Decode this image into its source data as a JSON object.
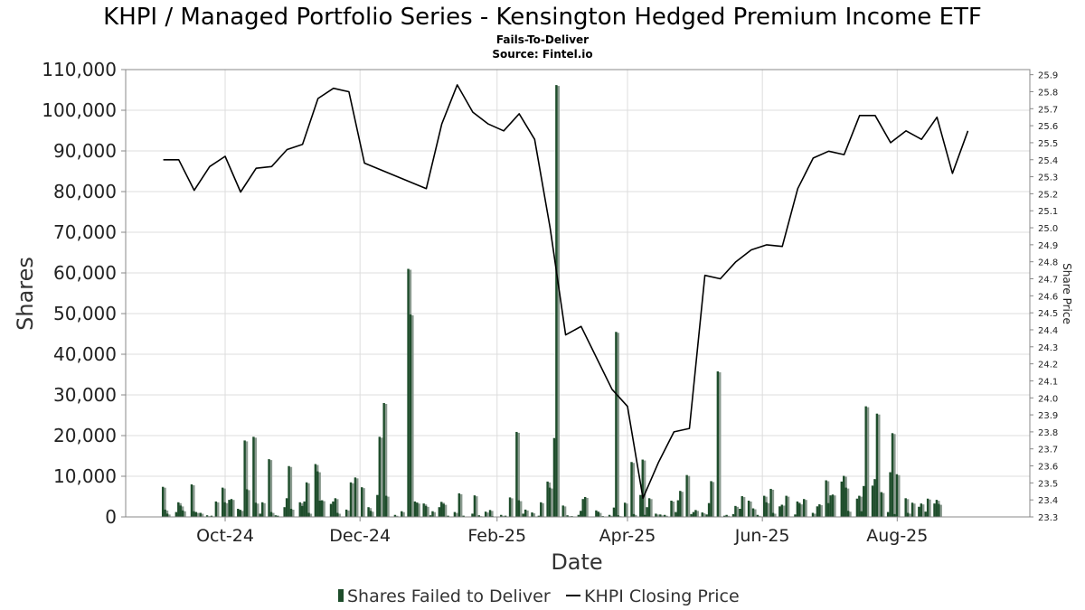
{
  "chart_data": {
    "type": "bar",
    "title": "KHPI / Managed Portfolio Series - Kensington Hedged Premium Income ETF",
    "subtitle": "Fails-To-Deliver",
    "source": "Source: Fintel.io",
    "xlabel": "Date",
    "ylabel": "Shares",
    "y2label": "Share Price",
    "ylim": [
      0,
      110000
    ],
    "y2lim": [
      23.3,
      25.93
    ],
    "xlim": [
      "2024-08-17",
      "2025-09-30"
    ],
    "grid": true,
    "legend_position": "bottom-center",
    "colors": {
      "bar": "#1e4d2b",
      "bar_shadow": "#8a9a8f",
      "line": "#000000",
      "grid": "#dddddd"
    },
    "yticks": [
      0,
      10000,
      20000,
      30000,
      40000,
      50000,
      60000,
      70000,
      80000,
      90000,
      100000,
      110000
    ],
    "ytick_labels": [
      "0",
      "10,000",
      "20,000",
      "30,000",
      "40,000",
      "50,000",
      "60,000",
      "70,000",
      "80,000",
      "90,000",
      "100,000",
      "110,000"
    ],
    "y2ticks": [
      23.3,
      23.4,
      23.5,
      23.6,
      23.7,
      23.8,
      23.9,
      24.0,
      24.1,
      24.2,
      24.3,
      24.4,
      24.5,
      24.6,
      24.7,
      24.8,
      24.9,
      25.0,
      25.1,
      25.2,
      25.3,
      25.4,
      25.5,
      25.6,
      25.7,
      25.8,
      25.9
    ],
    "xticks": [
      {
        "date": "2024-10-01",
        "label": "Oct-24"
      },
      {
        "date": "2024-12-01",
        "label": "Dec-24"
      },
      {
        "date": "2025-02-01",
        "label": "Feb-25"
      },
      {
        "date": "2025-04-01",
        "label": "Apr-25"
      },
      {
        "date": "2025-06-01",
        "label": "Jun-25"
      },
      {
        "date": "2025-08-01",
        "label": "Aug-25"
      }
    ],
    "series": [
      {
        "name": "Shares Failed to Deliver",
        "type": "bar",
        "points": [
          [
            "2024-09-03",
            7400
          ],
          [
            "2024-09-04",
            1800
          ],
          [
            "2024-09-05",
            800
          ],
          [
            "2024-09-09",
            1200
          ],
          [
            "2024-09-10",
            3600
          ],
          [
            "2024-09-11",
            2800
          ],
          [
            "2024-09-12",
            1600
          ],
          [
            "2024-09-16",
            8000
          ],
          [
            "2024-09-17",
            1400
          ],
          [
            "2024-09-18",
            1200
          ],
          [
            "2024-09-20",
            1000
          ],
          [
            "2024-09-23",
            400
          ],
          [
            "2024-09-25",
            300
          ],
          [
            "2024-09-27",
            3800
          ],
          [
            "2024-09-30",
            7200
          ],
          [
            "2024-10-01",
            3600
          ],
          [
            "2024-10-03",
            4200
          ],
          [
            "2024-10-04",
            4400
          ],
          [
            "2024-10-07",
            2000
          ],
          [
            "2024-10-08",
            1700
          ],
          [
            "2024-10-10",
            18800
          ],
          [
            "2024-10-11",
            6800
          ],
          [
            "2024-10-14",
            19700
          ],
          [
            "2024-10-15",
            3500
          ],
          [
            "2024-10-17",
            800
          ],
          [
            "2024-10-18",
            3600
          ],
          [
            "2024-10-21",
            14200
          ],
          [
            "2024-10-22",
            1200
          ],
          [
            "2024-10-24",
            400
          ],
          [
            "2024-10-25",
            300
          ],
          [
            "2024-10-28",
            2400
          ],
          [
            "2024-10-29",
            4600
          ],
          [
            "2024-10-30",
            12500
          ],
          [
            "2024-10-31",
            2000
          ],
          [
            "2024-11-04",
            3600
          ],
          [
            "2024-11-05",
            2700
          ],
          [
            "2024-11-06",
            3800
          ],
          [
            "2024-11-07",
            8500
          ],
          [
            "2024-11-08",
            1000
          ],
          [
            "2024-11-11",
            13000
          ],
          [
            "2024-11-12",
            11200
          ],
          [
            "2024-11-13",
            4000
          ],
          [
            "2024-11-14",
            4100
          ],
          [
            "2024-11-18",
            3200
          ],
          [
            "2024-11-19",
            3800
          ],
          [
            "2024-11-20",
            4600
          ],
          [
            "2024-11-21",
            1000
          ],
          [
            "2024-11-25",
            1800
          ],
          [
            "2024-11-27",
            8500
          ],
          [
            "2024-11-29",
            9700
          ],
          [
            "2024-12-02",
            7300
          ],
          [
            "2024-12-05",
            2400
          ],
          [
            "2024-12-06",
            1500
          ],
          [
            "2024-12-09",
            5400
          ],
          [
            "2024-12-10",
            19700
          ],
          [
            "2024-12-12",
            28000
          ],
          [
            "2024-12-13",
            5200
          ],
          [
            "2024-12-17",
            500
          ],
          [
            "2024-12-20",
            1400
          ],
          [
            "2024-12-23",
            61000
          ],
          [
            "2024-12-24",
            49800
          ],
          [
            "2024-12-26",
            3800
          ],
          [
            "2024-12-27",
            3500
          ],
          [
            "2024-12-30",
            3300
          ],
          [
            "2024-12-31",
            2700
          ],
          [
            "2025-01-02",
            400
          ],
          [
            "2025-01-03",
            1400
          ],
          [
            "2025-01-06",
            2400
          ],
          [
            "2025-01-07",
            3700
          ],
          [
            "2025-01-08",
            3200
          ],
          [
            "2025-01-10",
            300
          ],
          [
            "2025-01-13",
            1200
          ],
          [
            "2025-01-15",
            5800
          ],
          [
            "2025-01-17",
            300
          ],
          [
            "2025-01-21",
            800
          ],
          [
            "2025-01-22",
            5300
          ],
          [
            "2025-01-24",
            400
          ],
          [
            "2025-01-27",
            1300
          ],
          [
            "2025-01-29",
            1700
          ],
          [
            "2025-01-30",
            200
          ],
          [
            "2025-02-03",
            500
          ],
          [
            "2025-02-05",
            300
          ],
          [
            "2025-02-07",
            4800
          ],
          [
            "2025-02-10",
            20900
          ],
          [
            "2025-02-11",
            4100
          ],
          [
            "2025-02-13",
            800
          ],
          [
            "2025-02-14",
            1800
          ],
          [
            "2025-02-17",
            1100
          ],
          [
            "2025-02-20",
            300
          ],
          [
            "2025-02-21",
            3600
          ],
          [
            "2025-02-24",
            8700
          ],
          [
            "2025-02-25",
            7200
          ],
          [
            "2025-02-27",
            19400
          ],
          [
            "2025-02-28",
            106200
          ],
          [
            "2025-03-03",
            2800
          ],
          [
            "2025-03-05",
            400
          ],
          [
            "2025-03-07",
            200
          ],
          [
            "2025-03-10",
            500
          ],
          [
            "2025-03-11",
            1500
          ],
          [
            "2025-03-12",
            4400
          ],
          [
            "2025-03-13",
            4900
          ],
          [
            "2025-03-18",
            1600
          ],
          [
            "2025-03-19",
            1200
          ],
          [
            "2025-03-21",
            200
          ],
          [
            "2025-03-24",
            500
          ],
          [
            "2025-03-26",
            2300
          ],
          [
            "2025-03-27",
            45500
          ],
          [
            "2025-03-28",
            400
          ],
          [
            "2025-03-31",
            3500
          ],
          [
            "2025-04-03",
            13500
          ],
          [
            "2025-04-04",
            700
          ],
          [
            "2025-04-07",
            5400
          ],
          [
            "2025-04-08",
            14100
          ],
          [
            "2025-04-09",
            500
          ],
          [
            "2025-04-10",
            2400
          ],
          [
            "2025-04-11",
            4600
          ],
          [
            "2025-04-14",
            800
          ],
          [
            "2025-04-16",
            600
          ],
          [
            "2025-04-18",
            500
          ],
          [
            "2025-04-21",
            4000
          ],
          [
            "2025-04-23",
            1200
          ],
          [
            "2025-04-24",
            4100
          ],
          [
            "2025-04-25",
            6400
          ],
          [
            "2025-04-28",
            10300
          ],
          [
            "2025-04-30",
            700
          ],
          [
            "2025-05-01",
            1200
          ],
          [
            "2025-05-02",
            1700
          ],
          [
            "2025-05-05",
            1100
          ],
          [
            "2025-05-07",
            600
          ],
          [
            "2025-05-08",
            3400
          ],
          [
            "2025-05-09",
            8800
          ],
          [
            "2025-05-12",
            35800
          ],
          [
            "2025-05-15",
            300
          ],
          [
            "2025-05-16",
            500
          ],
          [
            "2025-05-19",
            700
          ],
          [
            "2025-05-20",
            2700
          ],
          [
            "2025-05-22",
            2000
          ],
          [
            "2025-05-23",
            5100
          ],
          [
            "2025-05-26",
            4000
          ],
          [
            "2025-05-28",
            2100
          ],
          [
            "2025-05-30",
            500
          ],
          [
            "2025-06-02",
            5200
          ],
          [
            "2025-06-03",
            3600
          ],
          [
            "2025-06-05",
            6900
          ],
          [
            "2025-06-06",
            1000
          ],
          [
            "2025-06-09",
            2600
          ],
          [
            "2025-06-10",
            3000
          ],
          [
            "2025-06-12",
            5200
          ],
          [
            "2025-06-16",
            600
          ],
          [
            "2025-06-17",
            3800
          ],
          [
            "2025-06-18",
            3300
          ],
          [
            "2025-06-20",
            4400
          ],
          [
            "2025-06-24",
            1000
          ],
          [
            "2025-06-26",
            2600
          ],
          [
            "2025-06-27",
            3100
          ],
          [
            "2025-06-30",
            9000
          ],
          [
            "2025-07-01",
            3400
          ],
          [
            "2025-07-02",
            5300
          ],
          [
            "2025-07-03",
            5500
          ],
          [
            "2025-07-07",
            8700
          ],
          [
            "2025-07-08",
            10100
          ],
          [
            "2025-07-09",
            7200
          ],
          [
            "2025-07-10",
            1500
          ],
          [
            "2025-07-14",
            4500
          ],
          [
            "2025-07-15",
            5200
          ],
          [
            "2025-07-16",
            1400
          ],
          [
            "2025-07-17",
            7600
          ],
          [
            "2025-07-18",
            27200
          ],
          [
            "2025-07-21",
            7700
          ],
          [
            "2025-07-22",
            9300
          ],
          [
            "2025-07-23",
            25400
          ],
          [
            "2025-07-25",
            6100
          ],
          [
            "2025-07-28",
            1200
          ],
          [
            "2025-07-29",
            11000
          ],
          [
            "2025-07-30",
            20600
          ],
          [
            "2025-07-31",
            700
          ],
          [
            "2025-08-01",
            10500
          ],
          [
            "2025-08-05",
            4600
          ],
          [
            "2025-08-06",
            1000
          ],
          [
            "2025-08-08",
            3500
          ],
          [
            "2025-08-11",
            2500
          ],
          [
            "2025-08-12",
            3300
          ],
          [
            "2025-08-14",
            1300
          ],
          [
            "2025-08-15",
            4500
          ],
          [
            "2025-08-18",
            3300
          ],
          [
            "2025-08-19",
            4200
          ],
          [
            "2025-08-20",
            3200
          ]
        ]
      },
      {
        "name": "KHPI Closing Price",
        "type": "line",
        "axis": "right",
        "points": [
          [
            "2024-09-03",
            25.4
          ],
          [
            "2024-09-10",
            25.4
          ],
          [
            "2024-09-17",
            25.22
          ],
          [
            "2024-09-24",
            25.36
          ],
          [
            "2024-10-01",
            25.42
          ],
          [
            "2024-10-08",
            25.21
          ],
          [
            "2024-10-15",
            25.35
          ],
          [
            "2024-10-22",
            25.36
          ],
          [
            "2024-10-29",
            25.46
          ],
          [
            "2024-11-05",
            25.49
          ],
          [
            "2024-11-12",
            25.76
          ],
          [
            "2024-11-19",
            25.82
          ],
          [
            "2024-11-26",
            25.8
          ],
          [
            "2024-12-03",
            25.38
          ],
          [
            "2024-12-31",
            25.23
          ],
          [
            "2025-01-07",
            25.61
          ],
          [
            "2025-01-14",
            25.84
          ],
          [
            "2025-01-21",
            25.68
          ],
          [
            "2025-01-28",
            25.61
          ],
          [
            "2025-02-04",
            25.57
          ],
          [
            "2025-02-11",
            25.67
          ],
          [
            "2025-02-18",
            25.52
          ],
          [
            "2025-02-25",
            25.0
          ],
          [
            "2025-03-04",
            24.37
          ],
          [
            "2025-03-11",
            24.42
          ],
          [
            "2025-03-25",
            24.05
          ],
          [
            "2025-04-01",
            23.95
          ],
          [
            "2025-04-08",
            23.41
          ],
          [
            "2025-04-15",
            23.62
          ],
          [
            "2025-04-22",
            23.8
          ],
          [
            "2025-04-29",
            23.82
          ],
          [
            "2025-05-06",
            24.72
          ],
          [
            "2025-05-13",
            24.7
          ],
          [
            "2025-05-20",
            24.8
          ],
          [
            "2025-05-27",
            24.87
          ],
          [
            "2025-06-03",
            24.9
          ],
          [
            "2025-06-10",
            24.89
          ],
          [
            "2025-06-17",
            25.23
          ],
          [
            "2025-06-24",
            25.41
          ],
          [
            "2025-07-01",
            25.45
          ],
          [
            "2025-07-08",
            25.43
          ],
          [
            "2025-07-15",
            25.66
          ],
          [
            "2025-07-22",
            25.66
          ],
          [
            "2025-07-29",
            25.5
          ],
          [
            "2025-08-05",
            25.57
          ],
          [
            "2025-08-12",
            25.52
          ],
          [
            "2025-08-19",
            25.65
          ],
          [
            "2025-08-26",
            25.32
          ],
          [
            "2025-09-02",
            25.57
          ]
        ]
      }
    ],
    "legend": [
      {
        "label": "Shares Failed to Deliver"
      },
      {
        "label": "KHPI Closing Price"
      }
    ]
  }
}
